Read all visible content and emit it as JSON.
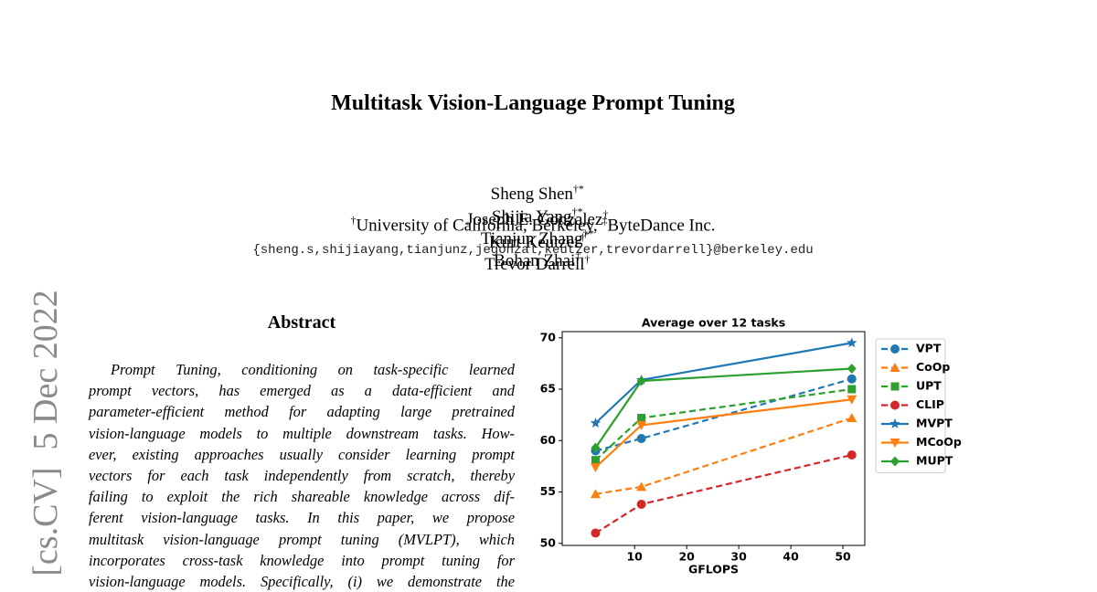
{
  "header": {
    "title": "Multitask Vision-Language Prompt Tuning",
    "authors": [
      {
        "name": "Sheng Shen",
        "sup": "†*"
      },
      {
        "name": "Shijia Yang",
        "sup": "†*"
      },
      {
        "name": "Tianjun Zhang",
        "sup": "†*"
      },
      {
        "name": "Bohan Zhai",
        "sup": "‡"
      },
      {
        "name": "Joseph E. Gonzalez",
        "sup": "†"
      },
      {
        "name": "Kurt Keutzer",
        "sup": "†"
      },
      {
        "name": "Trevor Darrell",
        "sup": "†"
      }
    ],
    "affiliations": [
      {
        "sup": "†",
        "text": "University of California, Berkeley,"
      },
      {
        "sup": "‡",
        "text": "ByteDance Inc."
      }
    ],
    "email": "{sheng.s,shijiayang,tianjunz,jegonzal,keutzer,trevordarrell}@berkeley.edu"
  },
  "stamp": "[cs.CV]  5 Dec 2022",
  "abstract": {
    "heading": "Abstract",
    "lines": [
      "Prompt Tuning, conditioning on task-specific learned",
      "prompt vectors, has emerged as a data-efficient and",
      "parameter-efficient method for adapting large pretrained",
      "vision-language models to multiple downstream tasks. How-",
      "ever, existing approaches usually consider learning prompt",
      "vectors for each task independently from scratch, thereby",
      "failing to exploit the rich shareable knowledge across dif-",
      "ferent vision-language tasks. In this paper, we propose",
      "multitask vision-language prompt tuning (MVLPT), which",
      "incorporates cross-task knowledge into prompt tuning for",
      "vision-language models. Specifically, (i) we demonstrate the"
    ]
  },
  "chart_data": {
    "type": "line",
    "title": "Average over 12 tasks",
    "x_label": "GFLOPS",
    "x": [
      2.5,
      11.3,
      51.7
    ],
    "xlim": [
      -3.9,
      54.2
    ],
    "xticks": [
      10,
      20,
      30,
      40,
      50
    ],
    "ylim": [
      49.8,
      70.6
    ],
    "yticks": [
      50,
      55,
      60,
      65,
      70
    ],
    "grid": false,
    "legend": "right",
    "series": [
      {
        "name": "VPT",
        "color": "#1f77b4",
        "marker": "o",
        "dashed": true,
        "values": [
          59.0,
          60.2,
          66.0
        ]
      },
      {
        "name": "CoOp",
        "color": "#ff7f0e",
        "marker": "^",
        "dashed": true,
        "values": [
          54.8,
          55.5,
          62.2
        ]
      },
      {
        "name": "UPT",
        "color": "#2ca02c",
        "marker": "s",
        "dashed": true,
        "values": [
          58.1,
          62.2,
          65.0
        ]
      },
      {
        "name": "CLIP",
        "color": "#d62728",
        "marker": "o",
        "dashed": true,
        "values": [
          51.0,
          53.8,
          58.6
        ]
      },
      {
        "name": "MVPT",
        "color": "#1f77b4",
        "marker": "*",
        "dashed": false,
        "values": [
          61.7,
          65.9,
          69.5
        ]
      },
      {
        "name": "MCoOp",
        "color": "#ff7f0e",
        "marker": "v",
        "dashed": false,
        "values": [
          57.4,
          61.5,
          64.0
        ]
      },
      {
        "name": "MUPT",
        "color": "#2ca02c",
        "marker": "D",
        "dashed": false,
        "values": [
          59.3,
          65.8,
          67.0
        ]
      }
    ]
  }
}
